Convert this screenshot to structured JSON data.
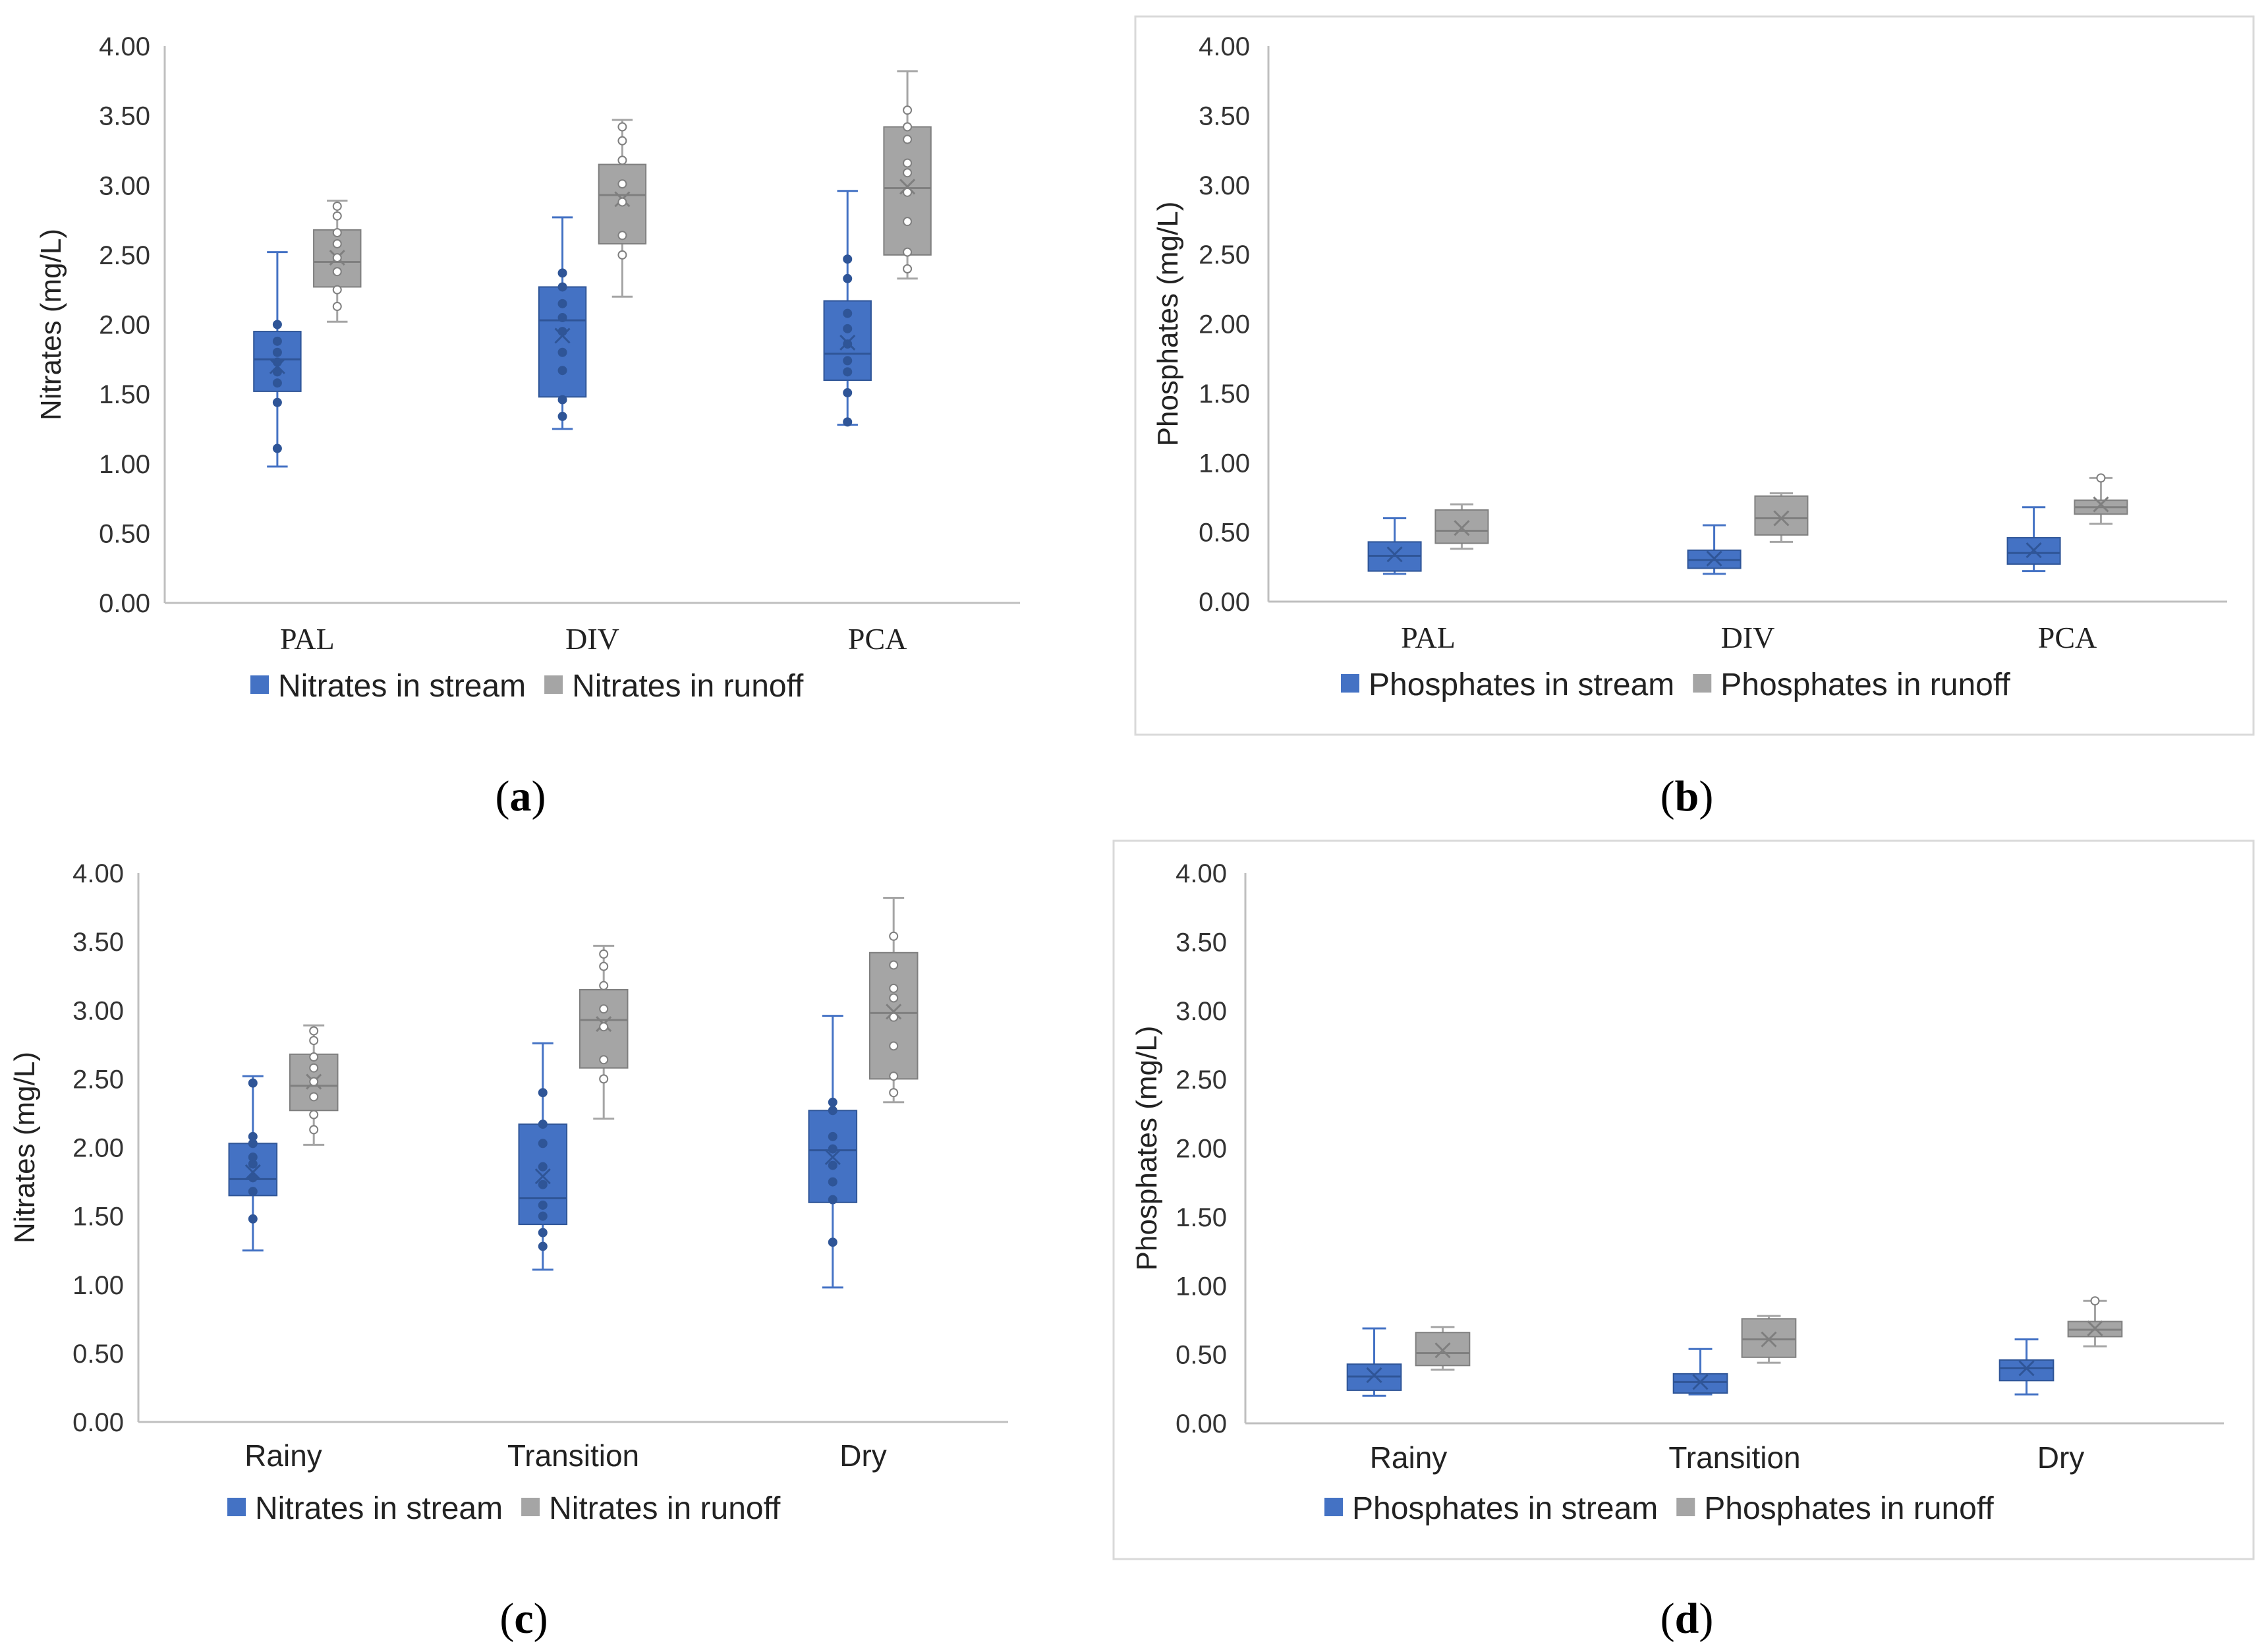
{
  "colors": {
    "stream": "#4472c4",
    "stream_dark": "#2f5597",
    "runoff": "#a5a5a5",
    "runoff_dark": "#7f7f7f"
  },
  "chart_data": [
    {
      "id": "a",
      "type": "box",
      "caption": "(a)",
      "ylabel": "Nitrates (mg/L)",
      "ylim": [
        0,
        4
      ],
      "yticks": [
        "0.00",
        "0.50",
        "1.00",
        "1.50",
        "2.00",
        "2.50",
        "3.00",
        "3.50",
        "4.00"
      ],
      "categories": [
        "PAL",
        "DIV",
        "PCA"
      ],
      "category_font": "serif",
      "series": [
        {
          "name": "Nitrates in stream",
          "color": "stream",
          "boxes": [
            {
              "min": 0.98,
              "q1": 1.52,
              "median": 1.75,
              "q3": 1.95,
              "max": 2.52,
              "mean": 1.7,
              "points": [
                1.11,
                1.44,
                1.58,
                1.66,
                1.73,
                1.8,
                1.88,
                2.0
              ]
            },
            {
              "min": 1.25,
              "q1": 1.48,
              "median": 2.03,
              "q3": 2.27,
              "max": 2.77,
              "mean": 1.92,
              "points": [
                1.34,
                1.46,
                1.67,
                1.8,
                1.95,
                2.05,
                2.15,
                2.27,
                2.37
              ]
            },
            {
              "min": 1.28,
              "q1": 1.6,
              "median": 1.79,
              "q3": 2.17,
              "max": 2.96,
              "mean": 1.87,
              "points": [
                1.3,
                1.51,
                1.66,
                1.74,
                1.86,
                1.97,
                2.08,
                2.33,
                2.47
              ]
            }
          ]
        },
        {
          "name": "Nitrates in runoff",
          "color": "runoff",
          "boxes": [
            {
              "min": 2.02,
              "q1": 2.27,
              "median": 2.45,
              "q3": 2.68,
              "max": 2.89,
              "mean": 2.48,
              "points": [
                2.13,
                2.25,
                2.38,
                2.48,
                2.58,
                2.66,
                2.78,
                2.85
              ]
            },
            {
              "min": 2.2,
              "q1": 2.58,
              "median": 2.93,
              "q3": 3.15,
              "max": 3.47,
              "mean": 2.9,
              "points": [
                2.5,
                2.64,
                2.88,
                3.01,
                3.18,
                3.32,
                3.42
              ]
            },
            {
              "min": 2.33,
              "q1": 2.5,
              "median": 2.98,
              "q3": 3.42,
              "max": 3.82,
              "mean": 2.99,
              "points": [
                2.4,
                2.52,
                2.74,
                2.95,
                3.09,
                3.16,
                3.33,
                3.42,
                3.54
              ]
            }
          ]
        }
      ]
    },
    {
      "id": "b",
      "type": "box",
      "caption": "(b)",
      "ylabel": "Phosphates  (mg/L)",
      "ylim": [
        0,
        4
      ],
      "yticks": [
        "0.00",
        "0.50",
        "1.00",
        "1.50",
        "2.00",
        "2.50",
        "3.00",
        "3.50",
        "4.00"
      ],
      "categories": [
        "PAL",
        "DIV",
        "PCA"
      ],
      "category_font": "serif",
      "series": [
        {
          "name": "Phosphates in stream",
          "color": "stream",
          "boxes": [
            {
              "min": 0.2,
              "q1": 0.22,
              "median": 0.33,
              "q3": 0.43,
              "max": 0.6,
              "mean": 0.34,
              "points": []
            },
            {
              "min": 0.2,
              "q1": 0.24,
              "median": 0.3,
              "q3": 0.37,
              "max": 0.55,
              "mean": 0.31,
              "points": []
            },
            {
              "min": 0.22,
              "q1": 0.27,
              "median": 0.35,
              "q3": 0.46,
              "max": 0.68,
              "mean": 0.37,
              "points": []
            }
          ]
        },
        {
          "name": "Phosphates in runoff",
          "color": "runoff",
          "boxes": [
            {
              "min": 0.38,
              "q1": 0.42,
              "median": 0.51,
              "q3": 0.66,
              "max": 0.7,
              "mean": 0.53,
              "points": []
            },
            {
              "min": 0.43,
              "q1": 0.48,
              "median": 0.6,
              "q3": 0.76,
              "max": 0.78,
              "mean": 0.6,
              "points": []
            },
            {
              "min": 0.56,
              "q1": 0.63,
              "median": 0.68,
              "q3": 0.73,
              "max": 0.89,
              "mean": 0.7,
              "points": [
                0.89
              ]
            }
          ]
        }
      ]
    },
    {
      "id": "c",
      "type": "box",
      "caption": "(c)",
      "ylabel": "Nitrates (mg/L)",
      "ylim": [
        0,
        4
      ],
      "yticks": [
        "0.00",
        "0.50",
        "1.00",
        "1.50",
        "2.00",
        "2.50",
        "3.00",
        "3.50",
        "4.00"
      ],
      "categories": [
        "Rainy",
        "Transition",
        "Dry"
      ],
      "category_font": "sans",
      "series": [
        {
          "name": "Nitrates in stream",
          "color": "stream",
          "boxes": [
            {
              "min": 1.25,
              "q1": 1.65,
              "median": 1.77,
              "q3": 2.03,
              "max": 2.52,
              "mean": 1.82,
              "points": [
                1.48,
                1.68,
                1.78,
                1.88,
                1.93,
                2.03,
                2.08,
                2.47
              ]
            },
            {
              "min": 1.11,
              "q1": 1.44,
              "median": 1.63,
              "q3": 2.17,
              "max": 2.76,
              "mean": 1.79,
              "points": [
                1.28,
                1.38,
                1.5,
                1.58,
                1.73,
                1.86,
                2.03,
                2.17,
                2.4
              ]
            },
            {
              "min": 0.98,
              "q1": 1.6,
              "median": 1.98,
              "q3": 2.27,
              "max": 2.96,
              "mean": 1.93,
              "points": [
                1.31,
                1.62,
                1.75,
                1.87,
                1.99,
                2.08,
                2.27,
                2.33
              ]
            }
          ]
        },
        {
          "name": "Nitrates in runoff",
          "color": "runoff",
          "boxes": [
            {
              "min": 2.02,
              "q1": 2.27,
              "median": 2.45,
              "q3": 2.68,
              "max": 2.89,
              "mean": 2.48,
              "points": [
                2.13,
                2.24,
                2.37,
                2.48,
                2.58,
                2.66,
                2.78,
                2.85
              ]
            },
            {
              "min": 2.21,
              "q1": 2.58,
              "median": 2.93,
              "q3": 3.15,
              "max": 3.47,
              "mean": 2.9,
              "points": [
                2.5,
                2.64,
                2.88,
                3.01,
                3.18,
                3.32,
                3.41
              ]
            },
            {
              "min": 2.33,
              "q1": 2.5,
              "median": 2.98,
              "q3": 3.42,
              "max": 3.82,
              "mean": 2.99,
              "points": [
                2.4,
                2.52,
                2.74,
                2.95,
                3.09,
                3.16,
                3.33,
                3.54
              ]
            }
          ]
        }
      ]
    },
    {
      "id": "d",
      "type": "box",
      "caption": "(d)",
      "ylabel": "Phosphates (mg/L)",
      "ylim": [
        0,
        4
      ],
      "yticks": [
        "0.00",
        "0.50",
        "1.00",
        "1.50",
        "2.00",
        "2.50",
        "3.00",
        "3.50",
        "4.00"
      ],
      "categories": [
        "Rainy",
        "Transition",
        "Dry"
      ],
      "category_font": "sans",
      "series": [
        {
          "name": "Phosphates in stream",
          "color": "stream",
          "boxes": [
            {
              "min": 0.2,
              "q1": 0.24,
              "median": 0.34,
              "q3": 0.43,
              "max": 0.69,
              "mean": 0.35,
              "points": []
            },
            {
              "min": 0.21,
              "q1": 0.22,
              "median": 0.3,
              "q3": 0.36,
              "max": 0.54,
              "mean": 0.3,
              "points": []
            },
            {
              "min": 0.21,
              "q1": 0.31,
              "median": 0.4,
              "q3": 0.46,
              "max": 0.61,
              "mean": 0.4,
              "points": []
            }
          ]
        },
        {
          "name": "Phosphates in runoff",
          "color": "runoff",
          "boxes": [
            {
              "min": 0.39,
              "q1": 0.42,
              "median": 0.51,
              "q3": 0.66,
              "max": 0.7,
              "mean": 0.53,
              "points": []
            },
            {
              "min": 0.44,
              "q1": 0.48,
              "median": 0.61,
              "q3": 0.76,
              "max": 0.78,
              "mean": 0.61,
              "points": []
            },
            {
              "min": 0.56,
              "q1": 0.63,
              "median": 0.68,
              "q3": 0.74,
              "max": 0.89,
              "mean": 0.69,
              "points": [
                0.89
              ]
            }
          ]
        }
      ]
    }
  ]
}
